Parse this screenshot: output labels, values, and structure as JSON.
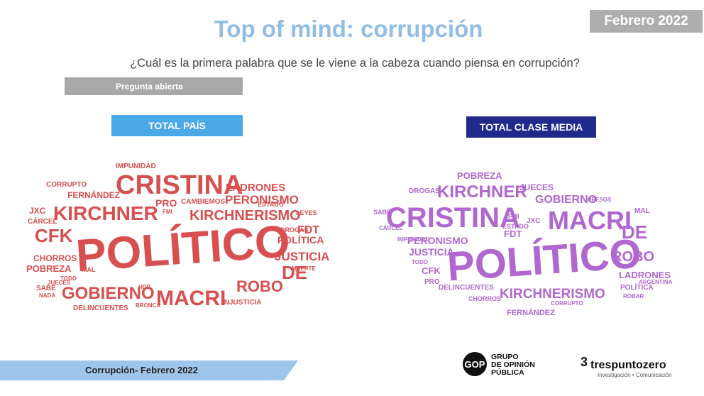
{
  "header": {
    "title": "Top of mind: corrupción",
    "date_badge": "Febrero 2022",
    "question": "¿Cuál es la primera palabra que se le viene a la cabeza cuando piensa en corrupción?",
    "open_question_label": "Pregunta abierta"
  },
  "colors": {
    "title": "#92bde4",
    "pais_cloud": "#d84f4f",
    "media_cloud": "#b067cf",
    "pais_label_bg": "#4aa8e6",
    "media_label_bg": "#1f2a8c"
  },
  "clouds": {
    "pais": {
      "label": "TOTAL PAÍS",
      "words": [
        "POLÍTICO",
        "CRISTINA",
        "KIRCHNER",
        "MACRI",
        "GOBIERNO",
        "KIRCHNERISMO",
        "CFK",
        "DE",
        "ROBO",
        "JUSTICIA",
        "POLÍTICA",
        "PERONISMO",
        "LADRONES",
        "FERNÁNDEZ",
        "POBREZA",
        "CHORROS",
        "FDT",
        "CORRUPTO",
        "IMPUNIDAD",
        "JXC",
        "CÁRCEL",
        "DELINCUENTES",
        "INJUSTICIA",
        "PRO",
        "CAMBIEMOS",
        "MAL",
        "SABE",
        "NADA",
        "TODO",
        "ESTADO",
        "LEYES",
        "DROGAS",
        "JUECES",
        "HDP",
        "FMI",
        "MUERTE",
        "BRONCA"
      ]
    },
    "media": {
      "label": "TOTAL CLASE MEDIA",
      "words": [
        "POLÍTICO",
        "CRISTINA",
        "MACRI",
        "KIRCHNER",
        "KIRCHNERISMO",
        "GOBIERNO",
        "DE",
        "ROBO",
        "PERONISMO",
        "JUSTICIA",
        "LADRONES",
        "POBREZA",
        "JUECES",
        "CFK",
        "FDT",
        "FERNÁNDEZ",
        "IMPUNIDAD",
        "DROGAS",
        "DELINCUENTES",
        "POLÍTICA",
        "MAL",
        "SABE",
        "PRO",
        "CHORROS",
        "CORRUPTO",
        "JXC",
        "ESTADO",
        "FMI",
        "CÁRCEL",
        "TODO",
        "ROBAR",
        "ARGENTINA",
        "PRESOS"
      ]
    }
  },
  "footer": {
    "text": "Corrupción- Febrero 2022",
    "gop_mark": "GOP",
    "gop_lines": [
      "GRUPO",
      "DE OPINIÓN",
      "PÚBLICA"
    ],
    "tpz_mark": "3",
    "tpz_name": "trespuntozero",
    "tpz_tagline": "Investigación • Comunicación"
  }
}
